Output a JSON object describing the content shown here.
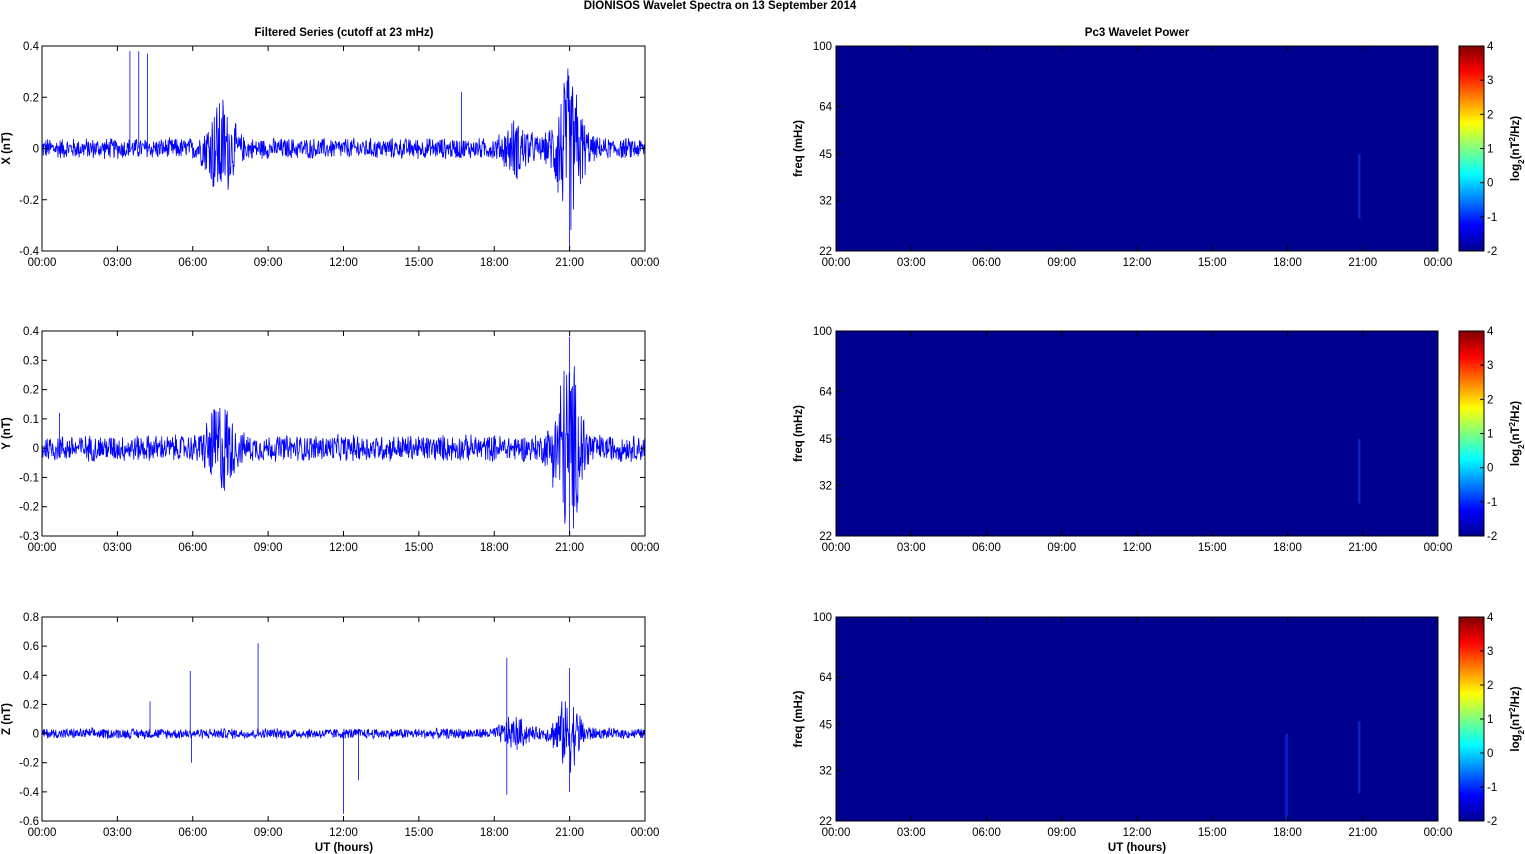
{
  "title": "DIONISOS Wavelet Spectra on 13 September 2014",
  "left_title": "Filtered Series (cutoff at 23 mHz)",
  "right_title": "Pc3 Wavelet Power",
  "xlabel": "UT (hours)",
  "x_ticks": [
    "00:00",
    "03:00",
    "06:00",
    "09:00",
    "12:00",
    "15:00",
    "18:00",
    "21:00",
    "00:00"
  ],
  "colors": {
    "series": "#0000ff",
    "background": "#00008f",
    "frame": "#000000"
  },
  "chart_data": [
    {
      "type": "line",
      "id": "x-series",
      "ylabel": "X (nT)",
      "xlim": [
        0,
        24
      ],
      "ylim": [
        -0.4,
        0.4
      ],
      "y_ticks": [
        "-0.4",
        "-0.2",
        "0",
        "0.2",
        "0.4"
      ],
      "base_amplitude": 0.045,
      "bursts": [
        {
          "x": 7.1,
          "amp": 0.2
        },
        {
          "x": 20.95,
          "amp": 0.32
        },
        {
          "x": 18.9,
          "amp": 0.09
        }
      ],
      "spikes": [
        {
          "x": 3.5,
          "y": 0.38
        },
        {
          "x": 3.85,
          "y": 0.38
        },
        {
          "x": 4.2,
          "y": 0.37
        },
        {
          "x": 16.7,
          "y": 0.22
        },
        {
          "x": 21.0,
          "y": -0.4
        }
      ]
    },
    {
      "type": "line",
      "id": "y-series",
      "ylabel": "Y (nT)",
      "xlim": [
        0,
        24
      ],
      "ylim": [
        -0.3,
        0.4
      ],
      "y_ticks": [
        "-0.3",
        "-0.2",
        "-0.1",
        "0",
        "0.1",
        "0.2",
        "0.3",
        "0.4"
      ],
      "base_amplitude": 0.05,
      "bursts": [
        {
          "x": 7.1,
          "amp": 0.15
        },
        {
          "x": 20.95,
          "amp": 0.32
        }
      ],
      "spikes": [
        {
          "x": 0.7,
          "y": 0.12
        },
        {
          "x": 21.0,
          "y": 0.38
        },
        {
          "x": 21.0,
          "y": -0.3
        }
      ]
    },
    {
      "type": "line",
      "id": "z-series",
      "ylabel": "Z (nT)",
      "xlim": [
        0,
        24
      ],
      "ylim": [
        -0.6,
        0.8
      ],
      "y_ticks": [
        "-0.6",
        "-0.4",
        "-0.2",
        "0",
        "0.2",
        "0.4",
        "0.6",
        "0.8"
      ],
      "base_amplitude": 0.04,
      "bursts": [
        {
          "x": 20.95,
          "amp": 0.25
        },
        {
          "x": 18.8,
          "amp": 0.1
        }
      ],
      "spikes": [
        {
          "x": 5.9,
          "y": 0.43
        },
        {
          "x": 5.95,
          "y": -0.2
        },
        {
          "x": 8.6,
          "y": 0.62
        },
        {
          "x": 12.0,
          "y": -0.55
        },
        {
          "x": 12.6,
          "y": -0.32
        },
        {
          "x": 18.5,
          "y": 0.52
        },
        {
          "x": 18.5,
          "y": -0.42
        },
        {
          "x": 21.0,
          "y": 0.45
        },
        {
          "x": 21.0,
          "y": -0.4
        },
        {
          "x": 4.3,
          "y": 0.22
        }
      ]
    },
    {
      "type": "heatmap",
      "id": "x-wavelet",
      "ylabel": "freq (mHz)",
      "y_scale": "log",
      "xlim": [
        0,
        24
      ],
      "ylim": [
        22,
        100
      ],
      "y_ticks": [
        22,
        32,
        45,
        64,
        100
      ],
      "colorbar": {
        "label": "log2(nT2/Hz)",
        "range": [
          -2,
          4
        ],
        "ticks": [
          -2,
          -1,
          0,
          1,
          2,
          3,
          4
        ]
      },
      "background_value": -2,
      "features": [
        {
          "x": 20.85,
          "f_low": 28,
          "f_high": 45,
          "value": -1.5
        }
      ]
    },
    {
      "type": "heatmap",
      "id": "y-wavelet",
      "ylabel": "freq (mHz)",
      "y_scale": "log",
      "xlim": [
        0,
        24
      ],
      "ylim": [
        22,
        100
      ],
      "y_ticks": [
        22,
        32,
        45,
        64,
        100
      ],
      "colorbar": {
        "label": "log2(nT2/Hz)",
        "range": [
          -2,
          4
        ],
        "ticks": [
          -2,
          -1,
          0,
          1,
          2,
          3,
          4
        ]
      },
      "background_value": -2,
      "features": [
        {
          "x": 20.85,
          "f_low": 28,
          "f_high": 45,
          "value": -1.6
        }
      ]
    },
    {
      "type": "heatmap",
      "id": "z-wavelet",
      "ylabel": "freq (mHz)",
      "y_scale": "log",
      "xlim": [
        0,
        24
      ],
      "ylim": [
        22,
        100
      ],
      "y_ticks": [
        22,
        32,
        45,
        64,
        100
      ],
      "colorbar": {
        "label": "log2(nT2/Hz)",
        "range": [
          -2,
          4
        ],
        "ticks": [
          -2,
          -1,
          0,
          1,
          2,
          3,
          4
        ]
      },
      "background_value": -2,
      "features": [
        {
          "x": 17.95,
          "f_low": 22,
          "f_high": 42,
          "value": -1.7
        },
        {
          "x": 20.85,
          "f_low": 27,
          "f_high": 46,
          "value": -1.5
        }
      ]
    }
  ]
}
